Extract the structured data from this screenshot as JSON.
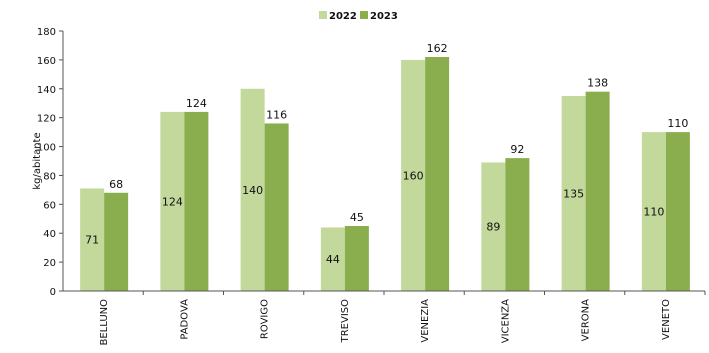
{
  "chart_data": {
    "type": "bar",
    "title": "",
    "xlabel": "",
    "ylabel": "kg/abitante",
    "ylim": [
      0,
      180
    ],
    "yticks": [
      0,
      20,
      40,
      60,
      80,
      100,
      120,
      140,
      160,
      180
    ],
    "grid": false,
    "legend_position": "top-center",
    "categories": [
      "BELLUNO",
      "PADOVA",
      "ROVIGO",
      "TREVISO",
      "VENEZIA",
      "VICENZA",
      "VERONA",
      "VENETO"
    ],
    "series": [
      {
        "name": "2022",
        "color": "#c3d89b",
        "values": [
          71,
          124,
          140,
          44,
          160,
          89,
          135,
          110
        ]
      },
      {
        "name": "2023",
        "color": "#8aae4e",
        "values": [
          68,
          124,
          116,
          45,
          162,
          92,
          138,
          110
        ]
      }
    ]
  }
}
